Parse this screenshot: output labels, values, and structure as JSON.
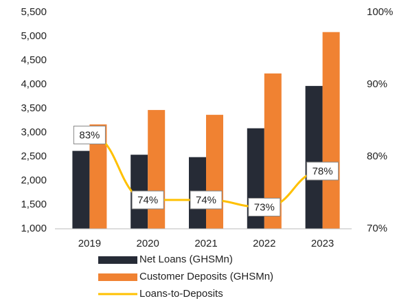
{
  "chart_data": {
    "type": "bar-line",
    "categories": [
      "2019",
      "2020",
      "2021",
      "2022",
      "2023"
    ],
    "series": [
      {
        "name": "Net Loans (GHSMn)",
        "color": "#262b36",
        "type": "bar",
        "values": [
          2620,
          2540,
          2490,
          3090,
          3970
        ]
      },
      {
        "name": "Customer Deposits (GHSMn)",
        "color": "#f08232",
        "type": "bar",
        "values": [
          3170,
          3470,
          3370,
          4230,
          5090
        ]
      },
      {
        "name": "Loans-to-Deposits",
        "color": "#ffc000",
        "type": "line",
        "axis": "y2",
        "values": [
          83,
          74,
          74,
          73,
          78
        ],
        "value_labels": [
          "83%",
          "74%",
          "74%",
          "73%",
          "78%"
        ]
      }
    ],
    "ylim": [
      1000,
      5500
    ],
    "yticks": [
      {
        "value": 1000,
        "label": "1,000"
      },
      {
        "value": 1500,
        "label": "1,500"
      },
      {
        "value": 2000,
        "label": "2,000"
      },
      {
        "value": 2500,
        "label": "2,500"
      },
      {
        "value": 3000,
        "label": "3,000"
      },
      {
        "value": 3500,
        "label": "3,500"
      },
      {
        "value": 4000,
        "label": "4,000"
      },
      {
        "value": 4500,
        "label": "4,500"
      },
      {
        "value": 5000,
        "label": "5,000"
      },
      {
        "value": 5500,
        "label": "5,500"
      }
    ],
    "y2lim": [
      70,
      100
    ],
    "y2ticks": [
      {
        "value": 70,
        "label": "70%"
      },
      {
        "value": 80,
        "label": "80%"
      },
      {
        "value": 90,
        "label": "90%"
      },
      {
        "value": 100,
        "label": "100%"
      }
    ],
    "grid": false
  }
}
